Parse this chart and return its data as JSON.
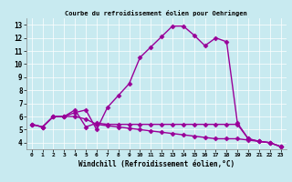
{
  "title": "Courbe du refroidissement éolien pour Oehringen",
  "xlabel": "Windchill (Refroidissement éolien,°C)",
  "bg_color": "#c8eaf0",
  "line_color": "#990099",
  "xlim": [
    -0.5,
    23.5
  ],
  "ylim": [
    3.5,
    13.5
  ],
  "xticks": [
    0,
    1,
    2,
    3,
    4,
    5,
    6,
    7,
    8,
    9,
    10,
    11,
    12,
    13,
    14,
    15,
    16,
    17,
    18,
    19,
    20,
    21,
    22,
    23
  ],
  "yticks": [
    4,
    5,
    6,
    7,
    8,
    9,
    10,
    11,
    12,
    13
  ],
  "series": [
    [
      5.4,
      5.2,
      6.0,
      6.0,
      6.3,
      6.5,
      5.0,
      6.7,
      7.6,
      8.5,
      10.5,
      11.3,
      12.1,
      12.9,
      12.9,
      12.2,
      11.4,
      12.0,
      11.7,
      5.5,
      4.3,
      4.1,
      4.0,
      3.7
    ],
    [
      5.4,
      5.2,
      6.0,
      6.0,
      6.5,
      5.2,
      5.5,
      5.4,
      5.4,
      5.4,
      5.4,
      5.4,
      5.4,
      5.4,
      5.4,
      5.4,
      5.4,
      5.4,
      5.4,
      5.4,
      4.3,
      4.1,
      4.0,
      3.7
    ],
    [
      5.4,
      5.2,
      6.0,
      6.0,
      6.0,
      5.8,
      5.4,
      5.3,
      5.2,
      5.1,
      5.0,
      4.9,
      4.8,
      4.7,
      4.6,
      4.5,
      4.4,
      4.3,
      4.3,
      4.3,
      4.2,
      4.1,
      4.0,
      3.7
    ]
  ],
  "marker": "D",
  "markersize": 2.5,
  "linewidth": 1.0
}
